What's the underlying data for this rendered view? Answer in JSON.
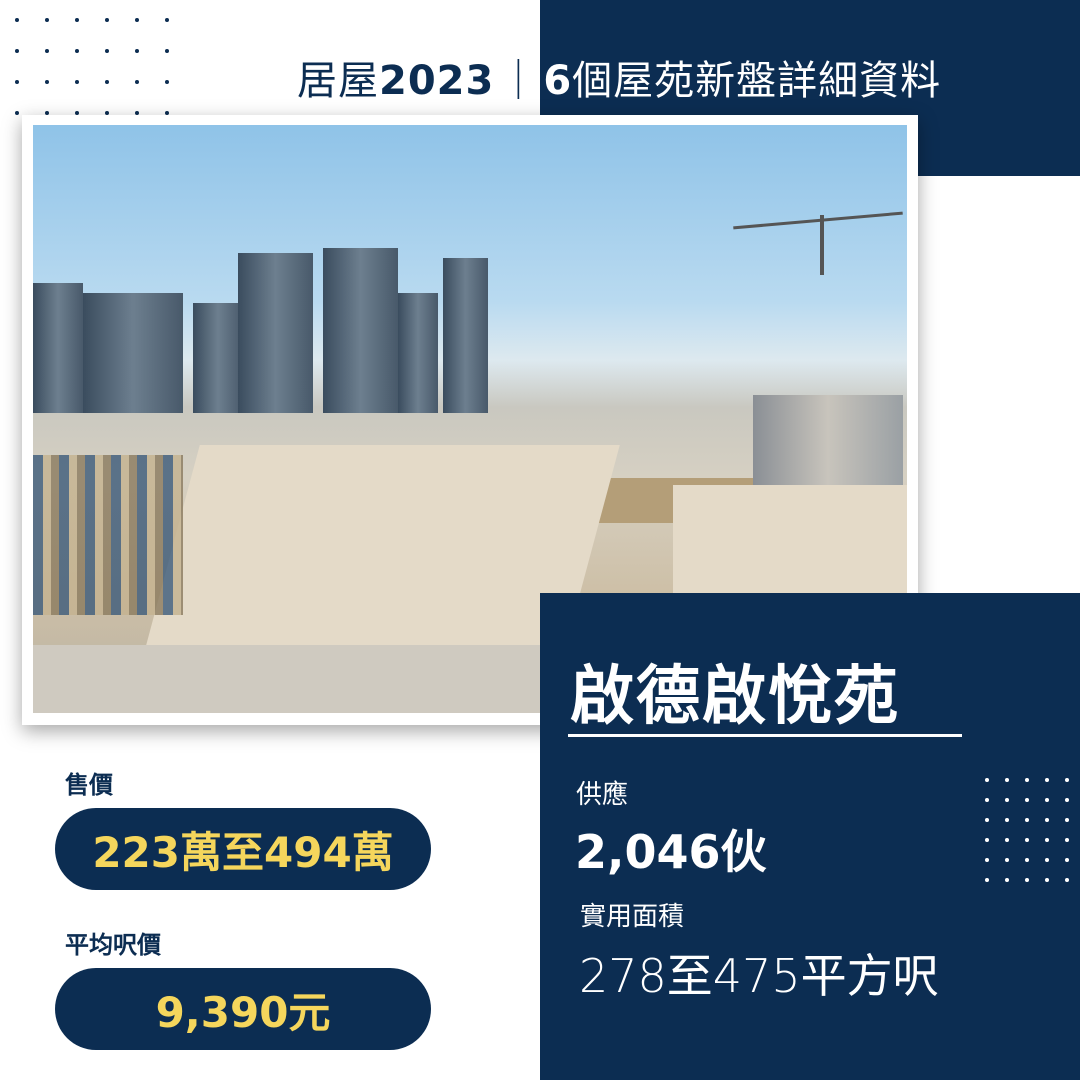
{
  "header": {
    "title_prefix": "居屋",
    "title_year": "2023",
    "title_sep": "｜",
    "title_count": "6",
    "title_suffix": "個屋苑新盤詳細資料"
  },
  "photo": {
    "alt": "啟德發展區工地航拍"
  },
  "estate": {
    "name": "啟德啟悅苑",
    "supply_label": "供應",
    "supply_value": "2,046伙",
    "area_label": "實用面積",
    "area_value": "278至475平方呎"
  },
  "pricing": {
    "price_label": "售價",
    "price_value": "223萬至494萬",
    "avg_label": "平均呎價",
    "avg_value": "9,390元"
  },
  "colors": {
    "navy": "#0c2d52",
    "yellow": "#f5d65c",
    "white": "#ffffff"
  }
}
